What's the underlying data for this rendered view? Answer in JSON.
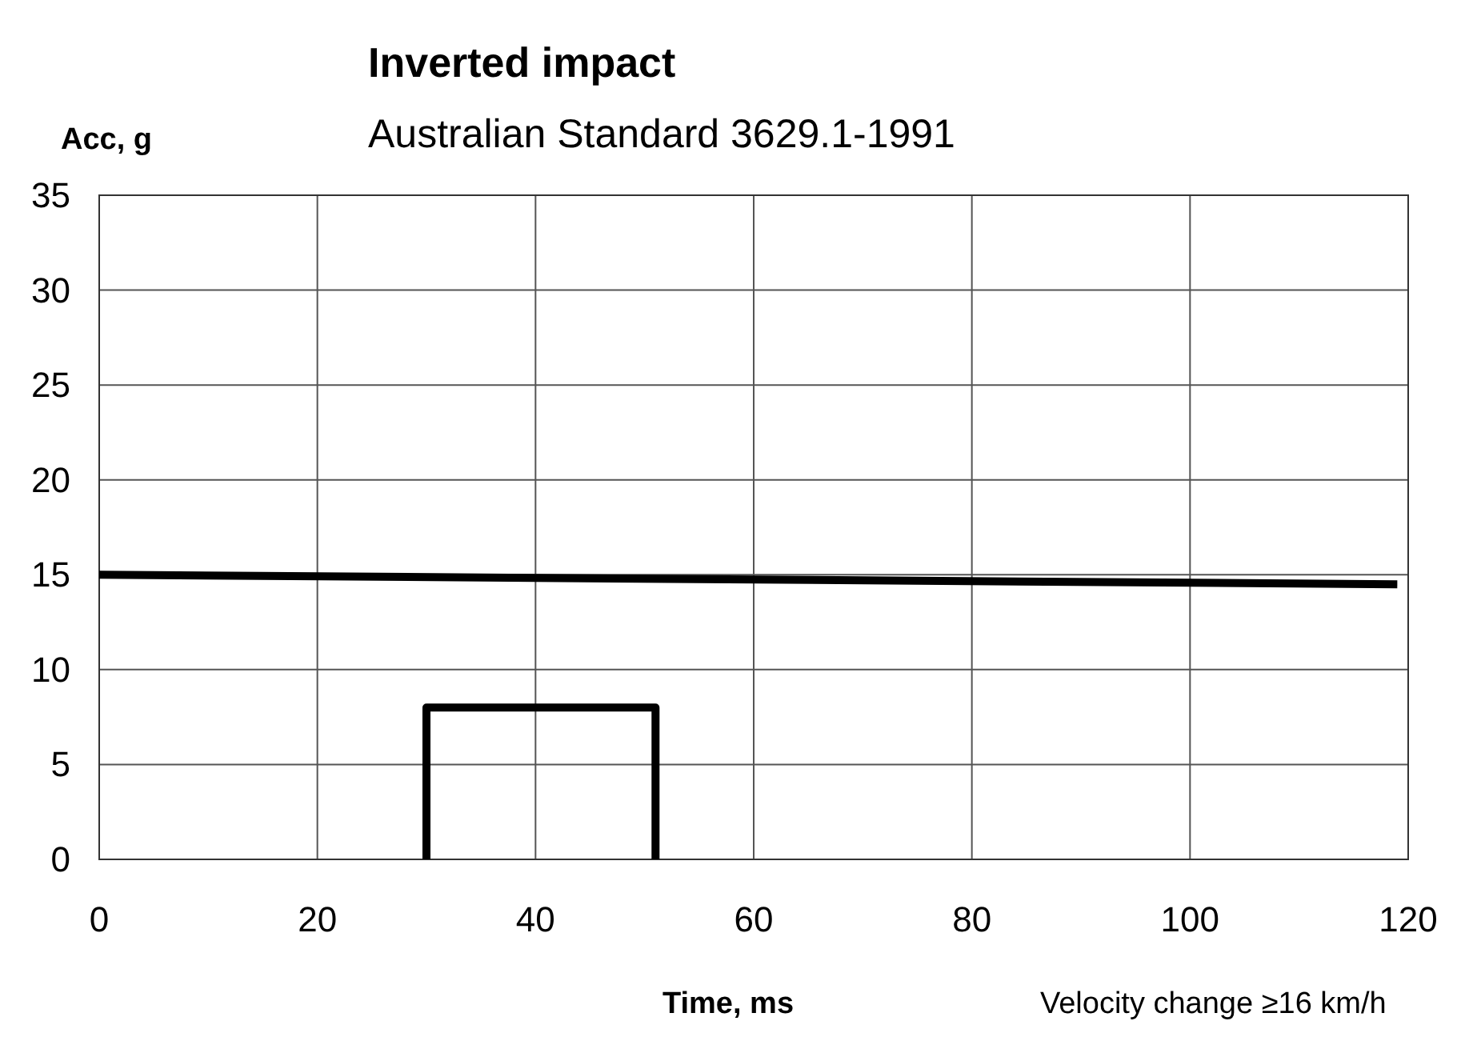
{
  "chart_data": {
    "type": "line",
    "title": "Inverted impact",
    "subtitle": "Australian Standard 3629.1-1991",
    "xlabel": "Time, ms",
    "ylabel": "Acc, g",
    "annotations": [
      "Velocity change ≥16 km/h"
    ],
    "xlim": [
      0,
      120
    ],
    "xticks": [
      0,
      20,
      40,
      60,
      80,
      100,
      120
    ],
    "ylim": [
      0,
      35
    ],
    "yticks": [
      0,
      5,
      10,
      15,
      20,
      25,
      30,
      35
    ],
    "grid": true,
    "marker": "none",
    "line_style": "solid",
    "series": [
      {
        "color": "#000000",
        "x": [
          0,
          119
        ],
        "values": [
          15,
          14.5
        ]
      },
      {
        "color": "#000000",
        "x": [
          30,
          30,
          51,
          51
        ],
        "values": [
          0,
          8,
          8,
          0
        ]
      }
    ]
  }
}
